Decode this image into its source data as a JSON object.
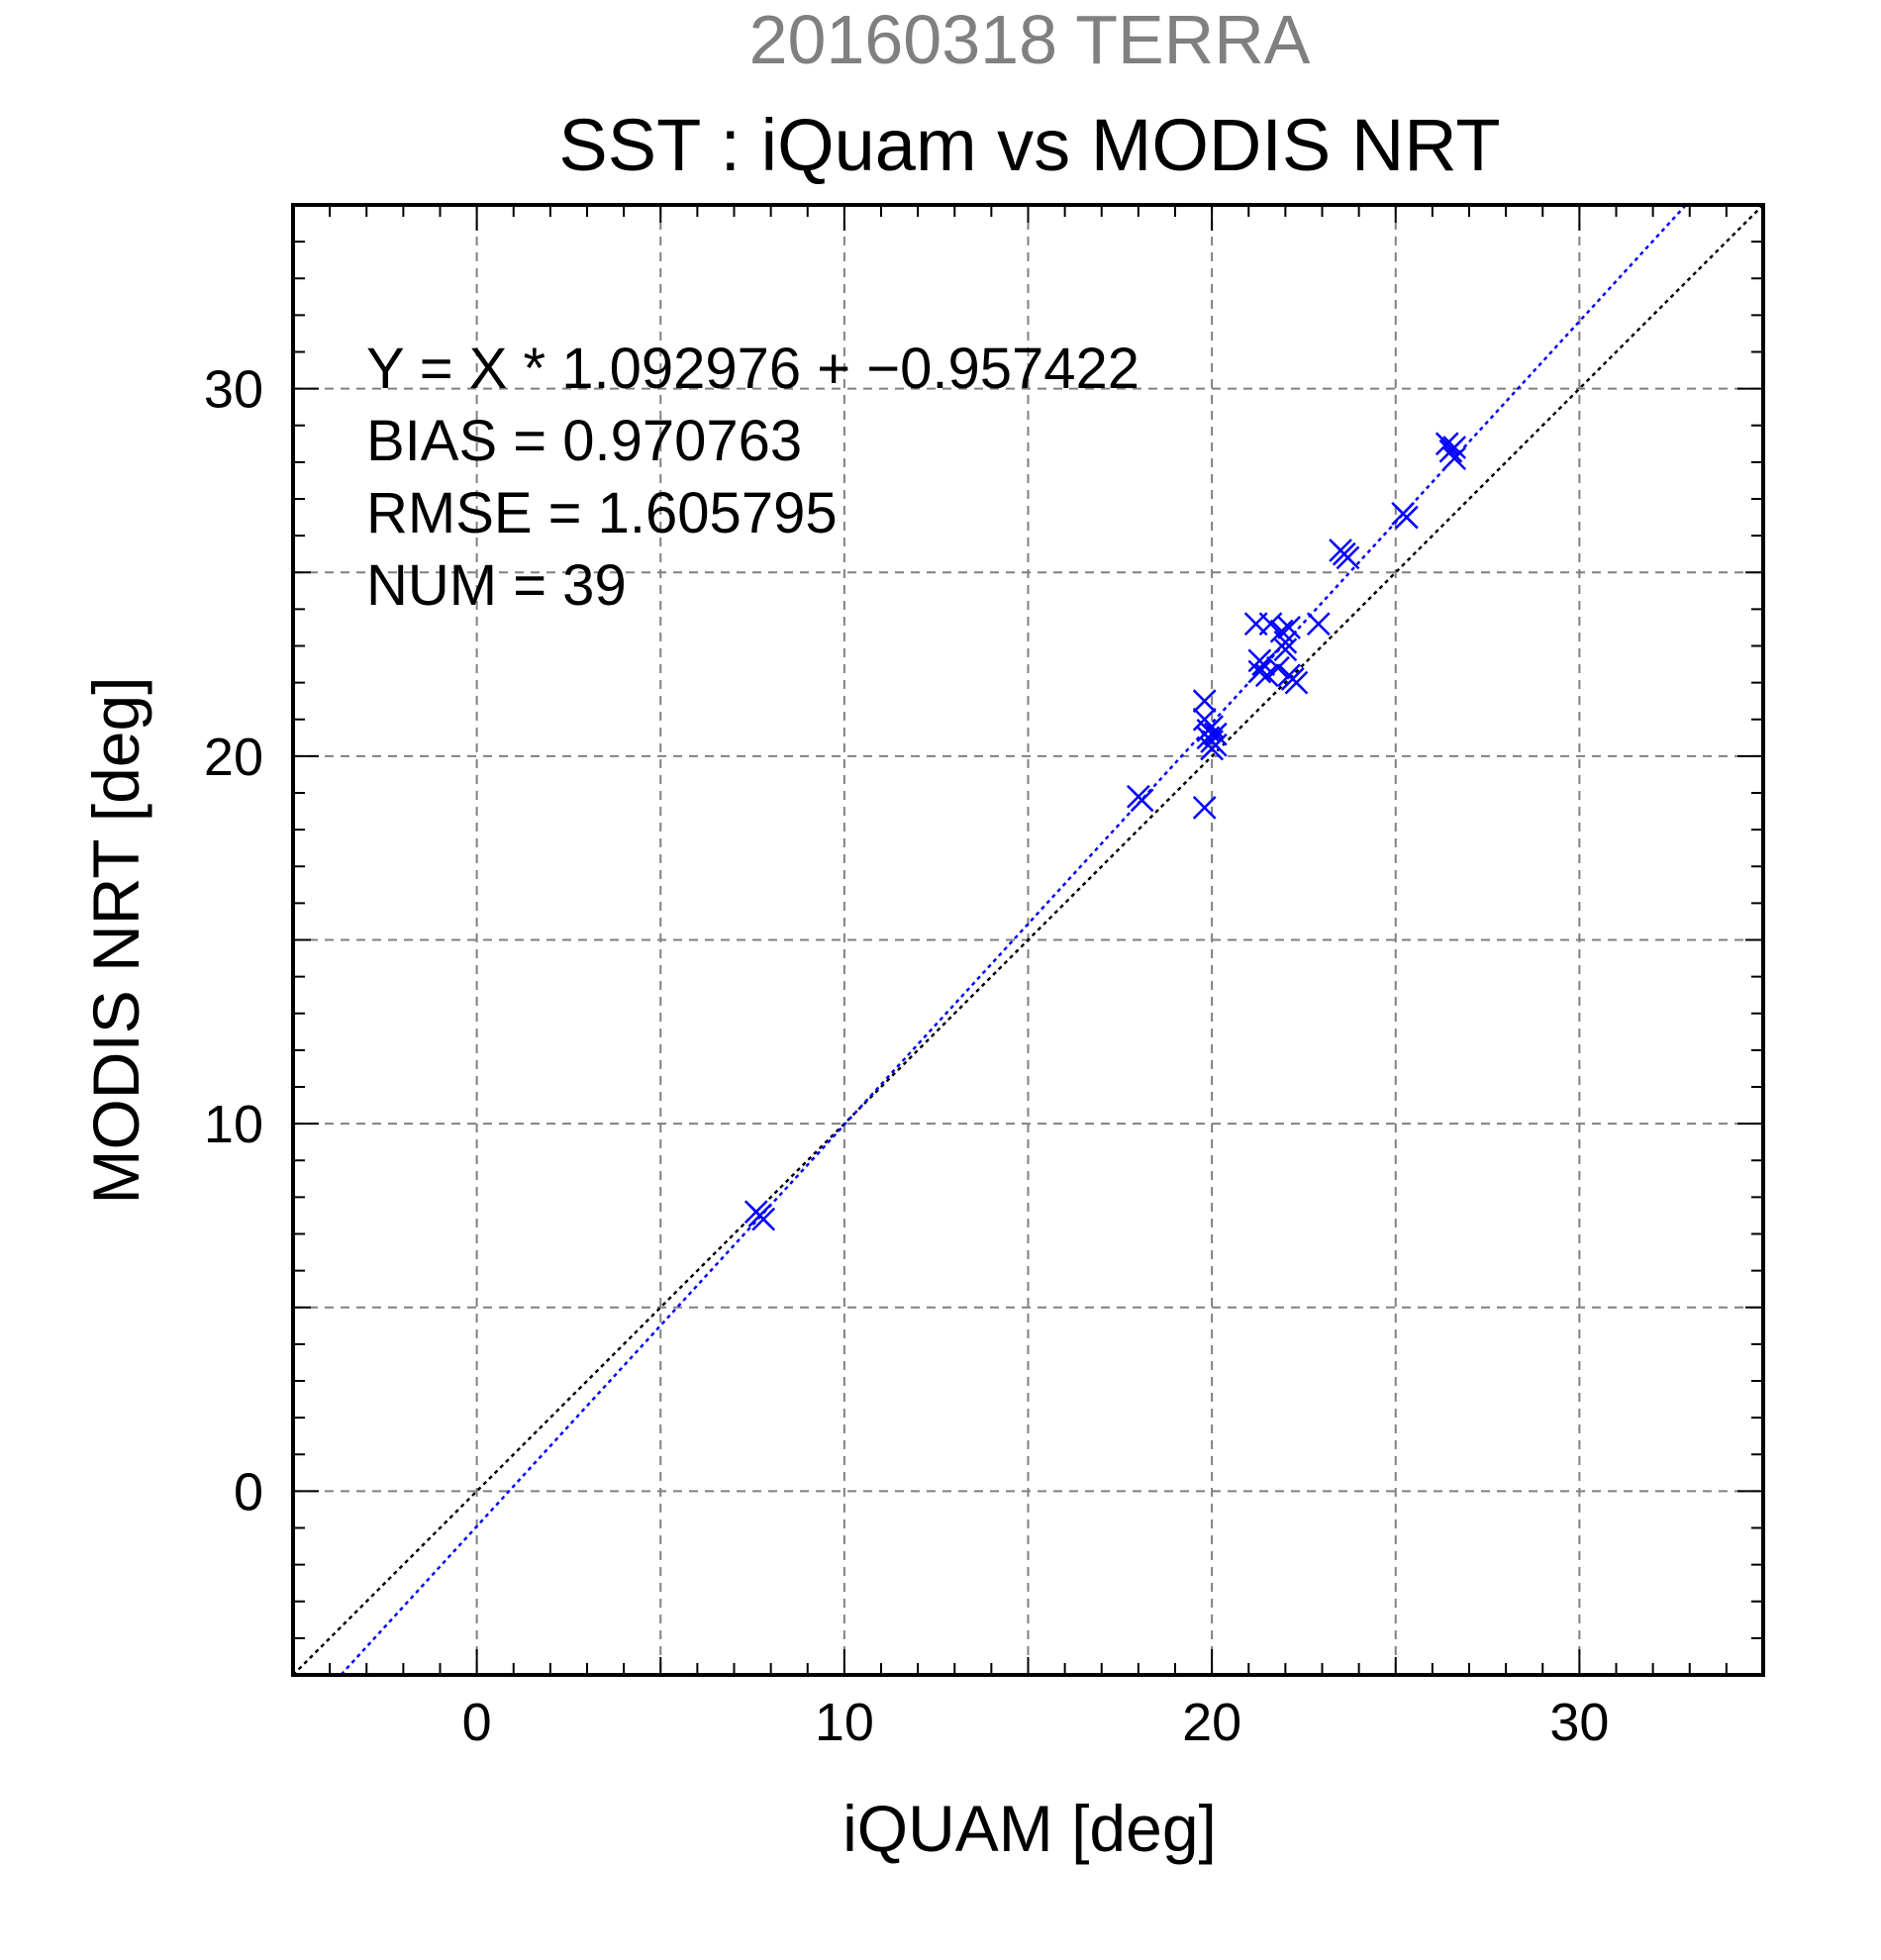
{
  "chart_data": {
    "type": "scatter",
    "supertitle": "20160318 TERRA",
    "title": "SST : iQuam vs MODIS NRT",
    "xlabel": "iQUAM [deg]",
    "ylabel": "MODIS NRT [deg]",
    "xlim": [
      -5,
      35
    ],
    "ylim": [
      -5,
      35
    ],
    "xticks": [
      0,
      10,
      20,
      30
    ],
    "yticks": [
      0,
      10,
      20,
      30
    ],
    "xtick_labels": [
      "0",
      "10",
      "20",
      "30"
    ],
    "ytick_labels": [
      "0",
      "10",
      "20",
      "30"
    ],
    "grid": true,
    "annotations": [
      "Y = X * 1.092976 + −0.957422",
      "BIAS = 0.970763",
      "RMSE = 1.605795",
      "NUM = 39"
    ],
    "fit_line": {
      "slope": 1.092976,
      "intercept": -0.957422,
      "color": "#0000ff"
    },
    "identity_line": {
      "slope": 1,
      "intercept": 0,
      "color": "#000000"
    },
    "marker_color": "#0000ff",
    "marker": "x",
    "points": [
      [
        7.6,
        7.6
      ],
      [
        7.7,
        7.5
      ],
      [
        7.8,
        7.4
      ],
      [
        18.0,
        18.9
      ],
      [
        18.1,
        18.8
      ],
      [
        19.8,
        18.6
      ],
      [
        19.8,
        21.5
      ],
      [
        19.8,
        21.0
      ],
      [
        19.9,
        20.7
      ],
      [
        19.9,
        20.5
      ],
      [
        20.0,
        20.8
      ],
      [
        20.0,
        20.4
      ],
      [
        20.0,
        20.2
      ],
      [
        20.1,
        20.6
      ],
      [
        20.1,
        20.3
      ],
      [
        21.2,
        23.6
      ],
      [
        21.3,
        22.6
      ],
      [
        21.3,
        22.3
      ],
      [
        21.4,
        22.5
      ],
      [
        21.5,
        22.2
      ],
      [
        21.6,
        23.6
      ],
      [
        21.8,
        22.4
      ],
      [
        21.9,
        23.4
      ],
      [
        22.0,
        22.9
      ],
      [
        22.0,
        23.1
      ],
      [
        22.1,
        22.2
      ],
      [
        22.1,
        23.5
      ],
      [
        22.2,
        22.1
      ],
      [
        22.3,
        22.0
      ],
      [
        22.9,
        23.6
      ],
      [
        23.5,
        25.6
      ],
      [
        23.6,
        25.5
      ],
      [
        23.7,
        25.4
      ],
      [
        25.2,
        26.6
      ],
      [
        25.3,
        26.5
      ],
      [
        26.4,
        28.5
      ],
      [
        26.5,
        28.3
      ],
      [
        26.6,
        28.4
      ],
      [
        26.6,
        28.1
      ]
    ]
  }
}
